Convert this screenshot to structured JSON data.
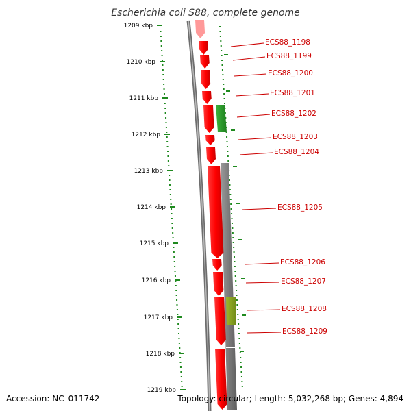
{
  "title": "Escherichia coli S88, complete genome",
  "footer": {
    "accession": "Accession: NC_011742",
    "topology": "Topology: circular; Length: 5,032,268 bp; Genes: 4,894"
  },
  "ticks": [
    "1209 kbp",
    "1210 kbp",
    "1211 kbp",
    "1212 kbp",
    "1213 kbp",
    "1214 kbp",
    "1215 kbp",
    "1216 kbp",
    "1217 kbp",
    "1218 kbp",
    "1219 kbp"
  ],
  "genes": [
    "ECS88_1198",
    "ECS88_1199",
    "ECS88_1200",
    "ECS88_1201",
    "ECS88_1202",
    "ECS88_1203",
    "ECS88_1204",
    "ECS88_1205",
    "ECS88_1206",
    "ECS88_1207",
    "ECS88_1208",
    "ECS88_1209"
  ],
  "colors": {
    "cds_forward": "#ff0000",
    "cds_forward_light": "#ff9999",
    "cds_other": "#2e9e2e",
    "reverse_track": "#7f7f7f",
    "reverse_highlight": "#8aa31f",
    "dots": "#1f8a1f",
    "backbone": "#6e6e6e",
    "label": "#cc0000"
  }
}
